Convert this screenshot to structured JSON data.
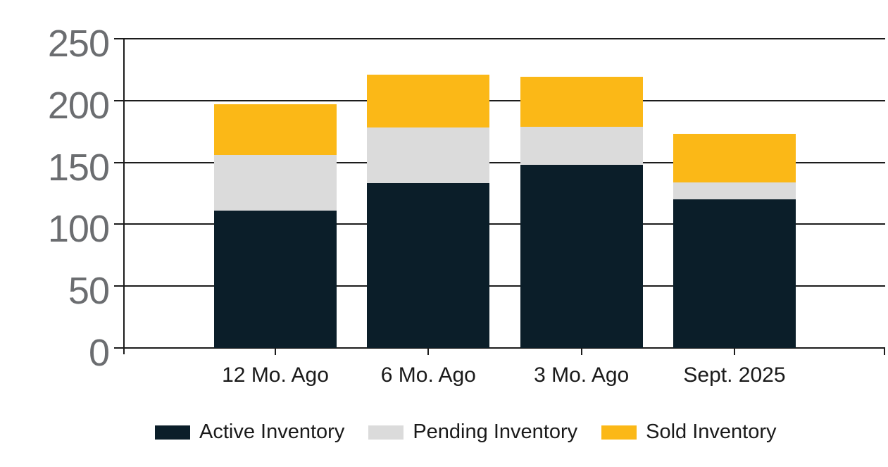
{
  "chart_data": {
    "type": "bar",
    "stacked": true,
    "title": "",
    "categories": [
      "12 Mo. Ago",
      "6 Mo. Ago",
      "3 Mo. Ago",
      "Sept. 2025"
    ],
    "series": [
      {
        "name": "Active Inventory",
        "color": "#0b1e29",
        "values": [
          111,
          133,
          148,
          120
        ]
      },
      {
        "name": "Pending Inventory",
        "color": "#dbdbdb",
        "values": [
          45,
          45,
          31,
          14
        ]
      },
      {
        "name": "Sold Inventory",
        "color": "#fbb817",
        "values": [
          41,
          43,
          40,
          39
        ]
      }
    ],
    "y_axis": {
      "ticks": [
        0,
        50,
        100,
        150,
        200,
        250
      ],
      "ylim": [
        0,
        250
      ],
      "label_color": "#6b6d70"
    },
    "grid": true,
    "legend_position": "bottom",
    "axis_color": "#1c1c1c",
    "background": "#ffffff"
  }
}
